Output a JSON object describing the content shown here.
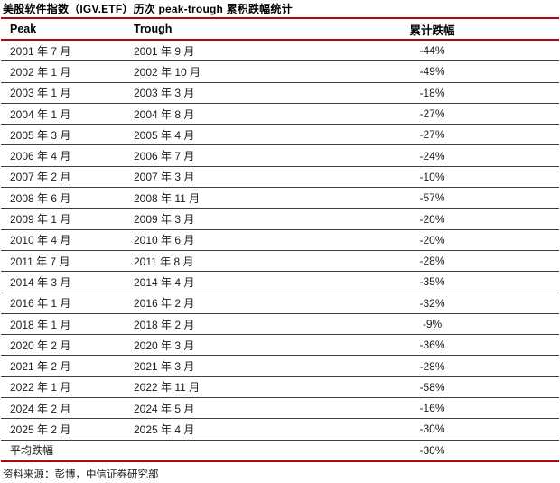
{
  "accent_color": "#b00808",
  "separator_color": "#3f3f3f",
  "title": "美股软件指数（IGV.ETF）历次 peak-trough 累积跌幅统计",
  "table": {
    "headers": [
      "Peak",
      "Trough",
      "累计跌幅"
    ],
    "rows": [
      [
        "2001 年 7 月",
        "2001 年 9 月",
        "-44%"
      ],
      [
        "2002 年 1 月",
        "2002 年 10 月",
        "-49%"
      ],
      [
        "2003 年 1 月",
        "2003 年 3 月",
        "-18%"
      ],
      [
        "2004 年 1 月",
        "2004 年 8 月",
        "-27%"
      ],
      [
        "2005 年 3 月",
        "2005 年 4 月",
        "-27%"
      ],
      [
        "2006 年 4 月",
        "2006 年 7 月",
        "-24%"
      ],
      [
        "2007 年 2 月",
        "2007 年 3 月",
        "-10%"
      ],
      [
        "2008 年 6 月",
        "2008 年 11 月",
        "-57%"
      ],
      [
        "2009 年 1 月",
        "2009 年 3 月",
        "-20%"
      ],
      [
        "2010 年 4 月",
        "2010 年 6 月",
        "-20%"
      ],
      [
        "2011 年 7 月",
        "2011 年 8 月",
        "-28%"
      ],
      [
        "2014 年 3 月",
        "2014 年 4 月",
        "-35%"
      ],
      [
        "2016 年 1 月",
        "2016 年 2 月",
        "-32%"
      ],
      [
        "2018 年 1 月",
        "2018 年 2 月",
        "-9%"
      ],
      [
        "2020 年 2 月",
        "2020 年 3 月",
        "-36%"
      ],
      [
        "2021 年 2 月",
        "2021 年 3 月",
        "-28%"
      ],
      [
        "2022 年 1 月",
        "2022 年 11 月",
        "-58%"
      ],
      [
        "2024 年 2 月",
        "2024 年 5 月",
        "-16%"
      ],
      [
        "2025 年 2 月",
        "2025 年 4 月",
        "-30%"
      ],
      [
        "平均跌幅",
        "",
        "-30%"
      ]
    ]
  },
  "source": "资料来源：彭博，中信证券研究部"
}
